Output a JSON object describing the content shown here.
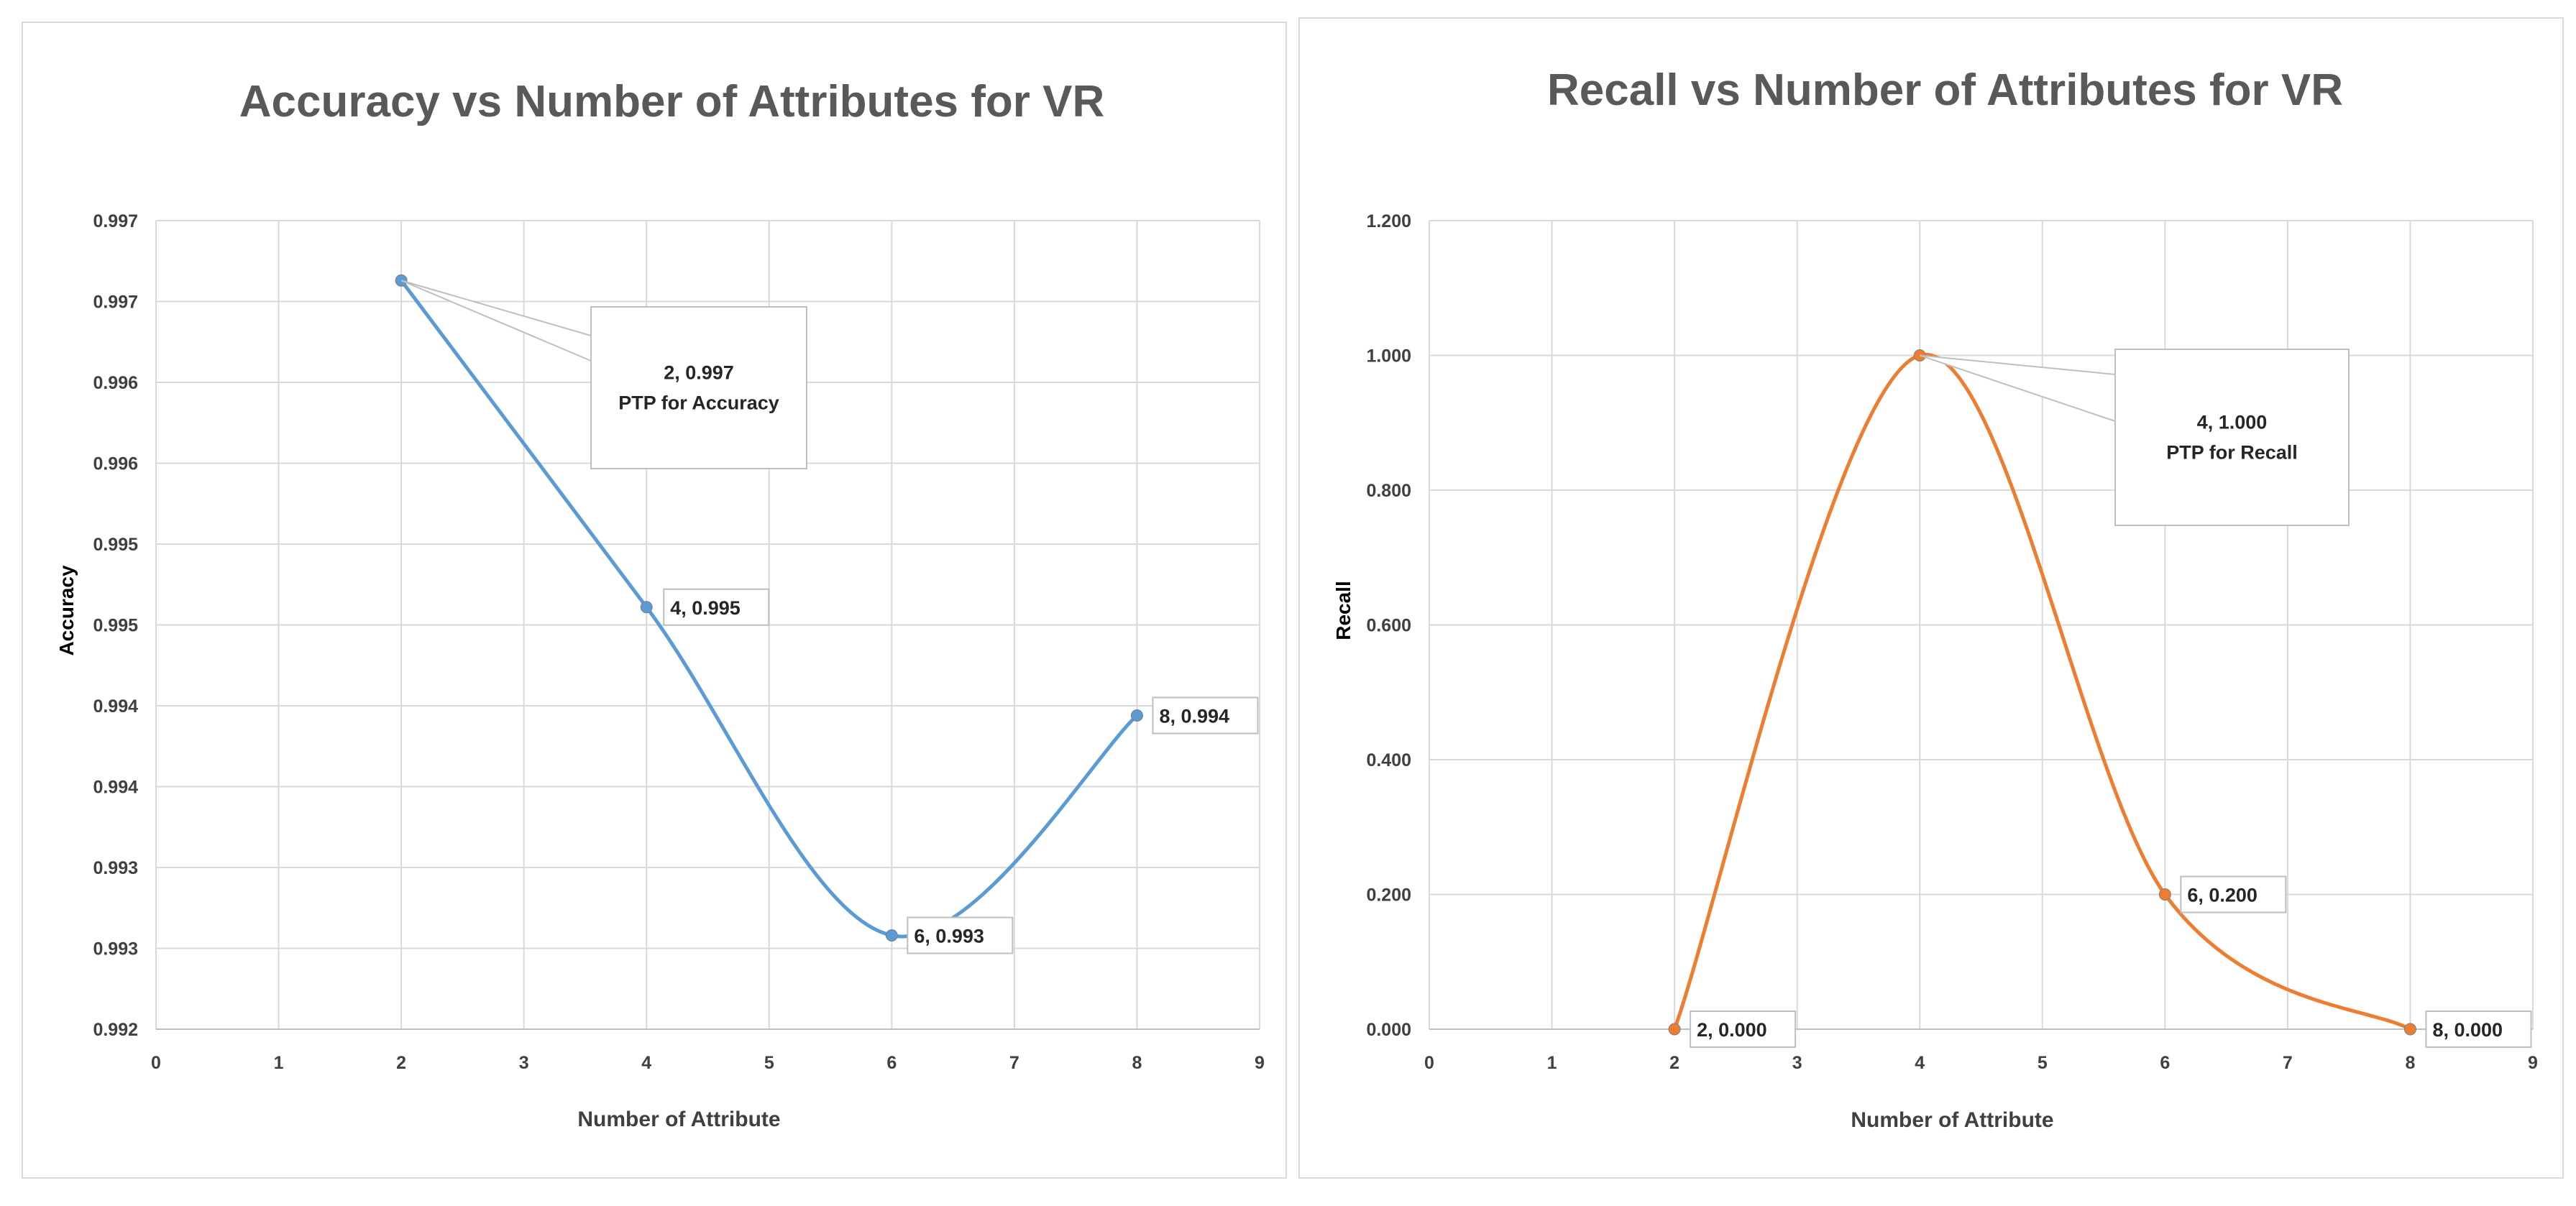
{
  "chart_data": [
    {
      "type": "line",
      "title": "Accuracy vs Number of Attributes for VR",
      "xlabel": "Number of Attribute",
      "ylabel": "Accuracy",
      "xlim": [
        0,
        9
      ],
      "ylim": [
        0.992,
        0.997
      ],
      "x_ticks": [
        "0",
        "1",
        "2",
        "3",
        "4",
        "5",
        "6",
        "7",
        "8",
        "9"
      ],
      "y_ticks": [
        "0.992",
        "0.993",
        "0.993",
        "0.994",
        "0.994",
        "0.995",
        "0.995",
        "0.996",
        "0.996",
        "0.997",
        "0.997"
      ],
      "grid": true,
      "smooth": true,
      "color": "#5b9bd5",
      "series": [
        {
          "name": "Accuracy",
          "x": [
            2,
            4,
            6,
            8
          ],
          "y": [
            0.99663,
            0.99461,
            0.99258,
            0.99394
          ],
          "labels": [
            "2, 0.997",
            "4, 0.995",
            "6, 0.993",
            "8, 0.994"
          ]
        }
      ],
      "annotation": {
        "point_index": 0,
        "line1": "2, 0.997",
        "line2": "PTP for Accuracy"
      }
    },
    {
      "type": "line",
      "title": "Recall vs Number of Attributes for VR",
      "xlabel": "Number of Attribute",
      "ylabel": "Recall",
      "xlim": [
        0,
        9
      ],
      "ylim": [
        0,
        1.2
      ],
      "x_ticks": [
        "0",
        "1",
        "2",
        "3",
        "4",
        "5",
        "6",
        "7",
        "8",
        "9"
      ],
      "y_ticks": [
        "0.000",
        "0.200",
        "0.400",
        "0.600",
        "0.800",
        "1.000",
        "1.200"
      ],
      "grid": true,
      "smooth": true,
      "color": "#ed7d31",
      "series": [
        {
          "name": "Recall",
          "x": [
            2,
            4,
            6,
            8
          ],
          "y": [
            0.0,
            1.0,
            0.2,
            0.0
          ],
          "labels": [
            "2, 0.000",
            "4, 1.000",
            "6, 0.200",
            "8, 0.000"
          ]
        }
      ],
      "annotation": {
        "point_index": 1,
        "line1": "4, 1.000",
        "line2": "PTP for Recall"
      }
    }
  ]
}
